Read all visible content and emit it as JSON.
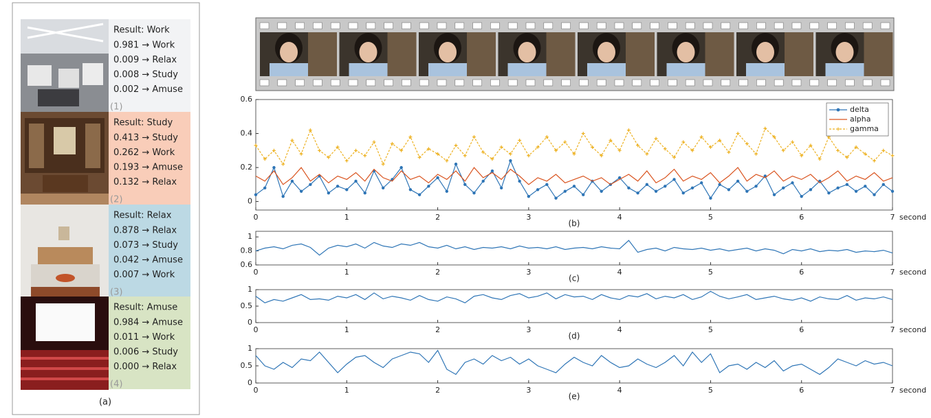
{
  "panel_a": {
    "caption": "(a)",
    "scenes": [
      {
        "result": "Result: Work",
        "lines": [
          "0.981 → Work",
          "0.009 → Relax",
          "0.008 → Study",
          "0.002 → Amuse"
        ],
        "index": "(1)"
      },
      {
        "result": "Result: Study",
        "lines": [
          "0.413 → Study",
          "0.262 → Work",
          "0.193 → Amuse",
          "0.132 → Relax"
        ],
        "index": "(2)"
      },
      {
        "result": "Result: Relax",
        "lines": [
          "0.878 → Relax",
          "0.073 → Study",
          "0.042 → Amuse",
          "0.007 → Work"
        ],
        "index": "(3)"
      },
      {
        "result": "Result: Amuse",
        "lines": [
          "0.984 → Amuse",
          "0.011 → Work",
          "0.006 → Study",
          "0.000 → Relax"
        ],
        "index": "(4)"
      }
    ]
  },
  "chart_data": [
    {
      "type": "line",
      "caption": "(b)",
      "x_label": "second",
      "legend": "upper right",
      "xlim": [
        0,
        7
      ],
      "xticks": [
        0,
        1,
        2,
        3,
        4,
        5,
        6,
        7
      ],
      "ylim": [
        -0.05,
        0.6
      ],
      "yticks": [
        0,
        0.2,
        0.4,
        0.6
      ],
      "x": [
        0,
        0.1,
        0.2,
        0.3,
        0.4,
        0.5,
        0.6,
        0.7,
        0.8,
        0.9,
        1,
        1.1,
        1.2,
        1.3,
        1.4,
        1.5,
        1.6,
        1.7,
        1.8,
        1.9,
        2,
        2.1,
        2.2,
        2.3,
        2.4,
        2.5,
        2.6,
        2.7,
        2.8,
        2.9,
        3,
        3.1,
        3.2,
        3.3,
        3.4,
        3.5,
        3.6,
        3.7,
        3.8,
        3.9,
        4,
        4.1,
        4.2,
        4.3,
        4.4,
        4.5,
        4.6,
        4.7,
        4.8,
        4.9,
        5,
        5.1,
        5.2,
        5.3,
        5.4,
        5.5,
        5.6,
        5.7,
        5.8,
        5.9,
        6,
        6.1,
        6.2,
        6.3,
        6.4,
        6.5,
        6.6,
        6.7,
        6.8,
        6.9,
        7
      ],
      "series": [
        {
          "name": "delta",
          "color": "#2e75b6",
          "marker": "circle",
          "dashed": false,
          "values": [
            0.04,
            0.08,
            0.2,
            0.03,
            0.12,
            0.06,
            0.1,
            0.15,
            0.05,
            0.09,
            0.07,
            0.12,
            0.05,
            0.18,
            0.08,
            0.13,
            0.2,
            0.07,
            0.04,
            0.09,
            0.14,
            0.06,
            0.22,
            0.1,
            0.05,
            0.12,
            0.18,
            0.08,
            0.24,
            0.12,
            0.03,
            0.07,
            0.1,
            0.02,
            0.06,
            0.09,
            0.04,
            0.12,
            0.06,
            0.1,
            0.14,
            0.08,
            0.05,
            0.1,
            0.06,
            0.09,
            0.13,
            0.05,
            0.08,
            0.11,
            0.02,
            0.1,
            0.07,
            0.12,
            0.06,
            0.09,
            0.15,
            0.04,
            0.08,
            0.11,
            0.03,
            0.07,
            0.12,
            0.05,
            0.08,
            0.1,
            0.06,
            0.09,
            0.04,
            0.1,
            0.06
          ]
        },
        {
          "name": "alpha",
          "color": "#d9531e",
          "marker": "none",
          "dashed": false,
          "values": [
            0.15,
            0.12,
            0.18,
            0.1,
            0.14,
            0.2,
            0.12,
            0.16,
            0.11,
            0.15,
            0.13,
            0.17,
            0.12,
            0.19,
            0.14,
            0.12,
            0.18,
            0.13,
            0.15,
            0.11,
            0.16,
            0.13,
            0.18,
            0.12,
            0.2,
            0.14,
            0.17,
            0.13,
            0.19,
            0.15,
            0.1,
            0.14,
            0.12,
            0.16,
            0.11,
            0.13,
            0.15,
            0.12,
            0.14,
            0.1,
            0.13,
            0.16,
            0.12,
            0.18,
            0.11,
            0.14,
            0.19,
            0.12,
            0.15,
            0.13,
            0.17,
            0.11,
            0.15,
            0.2,
            0.12,
            0.16,
            0.14,
            0.18,
            0.12,
            0.15,
            0.13,
            0.16,
            0.11,
            0.14,
            0.18,
            0.12,
            0.15,
            0.13,
            0.17,
            0.12,
            0.14
          ]
        },
        {
          "name": "gamma",
          "color": "#edb120",
          "marker": "plus",
          "dashed": true,
          "values": [
            0.33,
            0.25,
            0.3,
            0.22,
            0.36,
            0.28,
            0.42,
            0.3,
            0.26,
            0.32,
            0.24,
            0.3,
            0.27,
            0.35,
            0.22,
            0.34,
            0.3,
            0.38,
            0.26,
            0.31,
            0.28,
            0.24,
            0.33,
            0.27,
            0.38,
            0.29,
            0.25,
            0.32,
            0.28,
            0.36,
            0.27,
            0.32,
            0.38,
            0.3,
            0.35,
            0.28,
            0.4,
            0.32,
            0.27,
            0.36,
            0.3,
            0.42,
            0.33,
            0.28,
            0.37,
            0.31,
            0.26,
            0.35,
            0.3,
            0.38,
            0.32,
            0.36,
            0.29,
            0.4,
            0.34,
            0.28,
            0.43,
            0.38,
            0.3,
            0.35,
            0.27,
            0.33,
            0.25,
            0.38,
            0.3,
            0.26,
            0.32,
            0.28,
            0.24,
            0.3,
            0.27
          ]
        }
      ]
    },
    {
      "type": "line",
      "caption": "(c)",
      "x_label": "second",
      "color": "#2e75b6",
      "xlim": [
        0,
        7
      ],
      "xticks": [
        0,
        1,
        2,
        3,
        4,
        5,
        6,
        7
      ],
      "ylim": [
        0.6,
        1.08
      ],
      "yticks": [
        0.6,
        0.8,
        1
      ],
      "x": [
        0,
        0.1,
        0.2,
        0.3,
        0.4,
        0.5,
        0.6,
        0.7,
        0.8,
        0.9,
        1,
        1.1,
        1.2,
        1.3,
        1.4,
        1.5,
        1.6,
        1.7,
        1.8,
        1.9,
        2,
        2.1,
        2.2,
        2.3,
        2.4,
        2.5,
        2.6,
        2.7,
        2.8,
        2.9,
        3,
        3.1,
        3.2,
        3.3,
        3.4,
        3.5,
        3.6,
        3.7,
        3.8,
        3.9,
        4,
        4.1,
        4.2,
        4.3,
        4.4,
        4.5,
        4.6,
        4.7,
        4.8,
        4.9,
        5,
        5.1,
        5.2,
        5.3,
        5.4,
        5.5,
        5.6,
        5.7,
        5.8,
        5.9,
        6,
        6.1,
        6.2,
        6.3,
        6.4,
        6.5,
        6.6,
        6.7,
        6.8,
        6.9,
        7
      ],
      "values": [
        0.8,
        0.84,
        0.86,
        0.83,
        0.88,
        0.9,
        0.85,
        0.74,
        0.84,
        0.88,
        0.86,
        0.9,
        0.84,
        0.92,
        0.87,
        0.85,
        0.9,
        0.88,
        0.92,
        0.86,
        0.84,
        0.88,
        0.83,
        0.86,
        0.82,
        0.85,
        0.84,
        0.86,
        0.83,
        0.87,
        0.84,
        0.85,
        0.83,
        0.86,
        0.82,
        0.84,
        0.85,
        0.83,
        0.86,
        0.84,
        0.83,
        0.95,
        0.78,
        0.82,
        0.84,
        0.8,
        0.85,
        0.83,
        0.82,
        0.84,
        0.81,
        0.83,
        0.8,
        0.82,
        0.84,
        0.8,
        0.83,
        0.81,
        0.76,
        0.82,
        0.8,
        0.83,
        0.79,
        0.81,
        0.8,
        0.82,
        0.78,
        0.8,
        0.79,
        0.81,
        0.77
      ]
    },
    {
      "type": "line",
      "caption": "(d)",
      "x_label": "second",
      "color": "#2e75b6",
      "xlim": [
        0,
        7
      ],
      "xticks": [
        0,
        1,
        2,
        3,
        4,
        5,
        6,
        7
      ],
      "ylim": [
        0,
        1
      ],
      "yticks": [
        0,
        0.5,
        1
      ],
      "x": [
        0,
        0.1,
        0.2,
        0.3,
        0.4,
        0.5,
        0.6,
        0.7,
        0.8,
        0.9,
        1,
        1.1,
        1.2,
        1.3,
        1.4,
        1.5,
        1.6,
        1.7,
        1.8,
        1.9,
        2,
        2.1,
        2.2,
        2.3,
        2.4,
        2.5,
        2.6,
        2.7,
        2.8,
        2.9,
        3,
        3.1,
        3.2,
        3.3,
        3.4,
        3.5,
        3.6,
        3.7,
        3.8,
        3.9,
        4,
        4.1,
        4.2,
        4.3,
        4.4,
        4.5,
        4.6,
        4.7,
        4.8,
        4.9,
        5,
        5.1,
        5.2,
        5.3,
        5.4,
        5.5,
        5.6,
        5.7,
        5.8,
        5.9,
        6,
        6.1,
        6.2,
        6.3,
        6.4,
        6.5,
        6.6,
        6.7,
        6.8,
        6.9,
        7
      ],
      "values": [
        0.8,
        0.6,
        0.7,
        0.65,
        0.75,
        0.85,
        0.7,
        0.72,
        0.68,
        0.8,
        0.75,
        0.85,
        0.7,
        0.9,
        0.72,
        0.8,
        0.75,
        0.68,
        0.82,
        0.7,
        0.65,
        0.78,
        0.72,
        0.6,
        0.8,
        0.85,
        0.75,
        0.7,
        0.82,
        0.88,
        0.75,
        0.8,
        0.9,
        0.72,
        0.85,
        0.78,
        0.8,
        0.7,
        0.85,
        0.75,
        0.7,
        0.82,
        0.78,
        0.88,
        0.72,
        0.8,
        0.75,
        0.85,
        0.7,
        0.78,
        0.95,
        0.8,
        0.72,
        0.78,
        0.85,
        0.7,
        0.75,
        0.8,
        0.72,
        0.68,
        0.75,
        0.65,
        0.78,
        0.72,
        0.7,
        0.82,
        0.68,
        0.75,
        0.72,
        0.78,
        0.7
      ]
    },
    {
      "type": "line",
      "caption": "(e)",
      "x_label": "second",
      "color": "#2e75b6",
      "xlim": [
        0,
        7
      ],
      "xticks": [
        0,
        1,
        2,
        3,
        4,
        5,
        6,
        7
      ],
      "ylim": [
        0,
        1
      ],
      "yticks": [
        0,
        0.5,
        1
      ],
      "x": [
        0,
        0.1,
        0.2,
        0.3,
        0.4,
        0.5,
        0.6,
        0.7,
        0.8,
        0.9,
        1,
        1.1,
        1.2,
        1.3,
        1.4,
        1.5,
        1.6,
        1.7,
        1.8,
        1.9,
        2,
        2.1,
        2.2,
        2.3,
        2.4,
        2.5,
        2.6,
        2.7,
        2.8,
        2.9,
        3,
        3.1,
        3.2,
        3.3,
        3.4,
        3.5,
        3.6,
        3.7,
        3.8,
        3.9,
        4,
        4.1,
        4.2,
        4.3,
        4.4,
        4.5,
        4.6,
        4.7,
        4.8,
        4.9,
        5,
        5.1,
        5.2,
        5.3,
        5.4,
        5.5,
        5.6,
        5.7,
        5.8,
        5.9,
        6,
        6.1,
        6.2,
        6.3,
        6.4,
        6.5,
        6.6,
        6.7,
        6.8,
        6.9,
        7
      ],
      "values": [
        0.8,
        0.5,
        0.4,
        0.6,
        0.45,
        0.7,
        0.65,
        0.9,
        0.6,
        0.3,
        0.55,
        0.75,
        0.8,
        0.6,
        0.45,
        0.7,
        0.8,
        0.9,
        0.85,
        0.6,
        0.95,
        0.4,
        0.25,
        0.6,
        0.7,
        0.55,
        0.8,
        0.65,
        0.75,
        0.55,
        0.7,
        0.5,
        0.4,
        0.3,
        0.55,
        0.75,
        0.6,
        0.5,
        0.8,
        0.6,
        0.45,
        0.5,
        0.7,
        0.55,
        0.45,
        0.6,
        0.8,
        0.5,
        0.9,
        0.6,
        0.85,
        0.3,
        0.5,
        0.55,
        0.4,
        0.6,
        0.45,
        0.65,
        0.35,
        0.5,
        0.55,
        0.4,
        0.25,
        0.45,
        0.7,
        0.6,
        0.5,
        0.65,
        0.55,
        0.6,
        0.5
      ]
    }
  ]
}
